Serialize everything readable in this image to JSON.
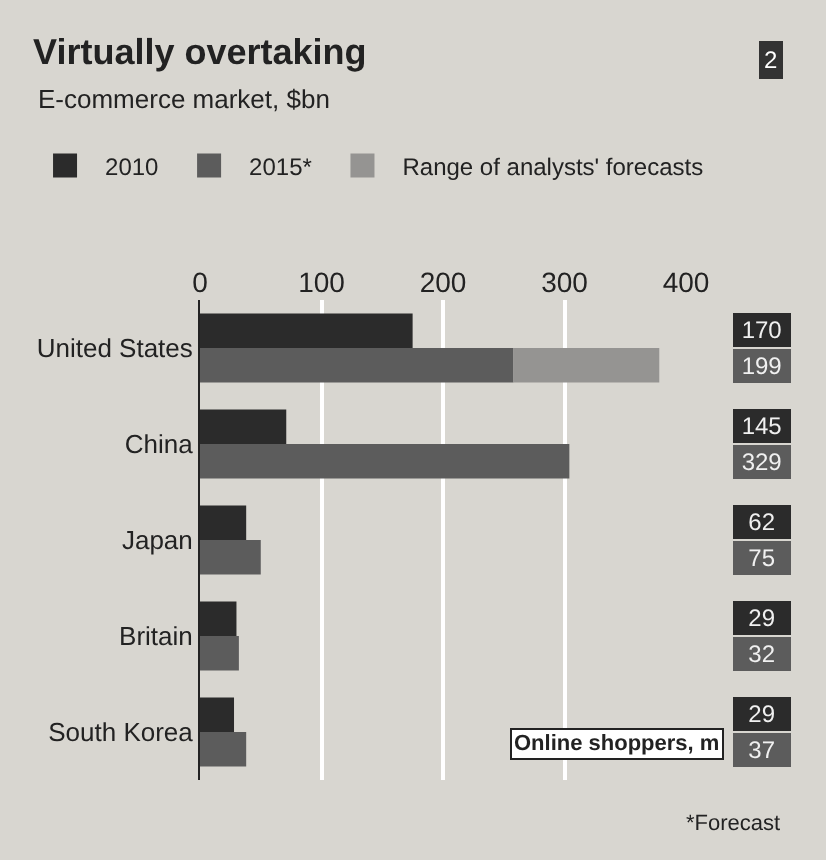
{
  "chart_data": {
    "type": "bar",
    "orientation": "horizontal",
    "title": "Virtually overtaking",
    "subtitle": "E-commerce market, $bn",
    "categories": [
      "United States",
      "China",
      "Japan",
      "Britain",
      "South Korea"
    ],
    "series": [
      {
        "name": "2010",
        "color": "#2b2b2b",
        "values": [
          175,
          71,
          38,
          30,
          28
        ]
      },
      {
        "name": "2015*",
        "color": "#5c5c5c",
        "values": [
          258,
          304,
          50,
          32,
          38
        ]
      },
      {
        "name": "Range of analysts' forecasts",
        "color": "#959492",
        "base": [
          258,
          null,
          null,
          null,
          null
        ],
        "values": [
          120,
          null,
          null,
          null,
          null
        ]
      }
    ],
    "xlim": [
      0,
      400
    ],
    "xticks": [
      0,
      100,
      200,
      300,
      400
    ],
    "grid": "x",
    "legend": "top",
    "annotations": [
      "2",
      "Online shoppers, m",
      "170",
      "199",
      "145",
      "329",
      "62",
      "75",
      "29",
      "32",
      "29",
      "37",
      "*Forecast"
    ]
  }
}
